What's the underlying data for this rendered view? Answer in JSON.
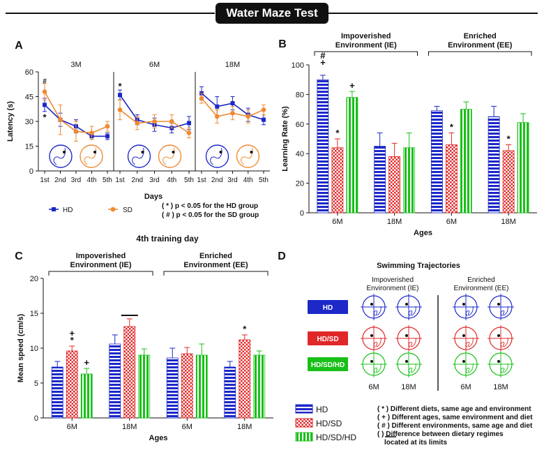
{
  "banner": "Water Maze Test",
  "colors": {
    "hd": "#1c28c8",
    "sd": "#ee8a32",
    "red": "#e02828",
    "green": "#18c018",
    "blue": "#1c28c8"
  },
  "chart_data": [
    {
      "id": "A",
      "type": "line",
      "panel_label": "A",
      "subpanels": [
        "3M",
        "6M",
        "18M"
      ],
      "categories": [
        "1st",
        "2nd",
        "3rd",
        "4th",
        "5th"
      ],
      "ylabel": "Latency (s)",
      "xlabel": "Days",
      "ylim": [
        0,
        60
      ],
      "yticks": [
        0,
        15,
        30,
        45,
        60
      ],
      "series": [
        {
          "name": "HD",
          "values": [
            [
              40,
              31,
              27,
              21,
              21
            ],
            [
              46,
              31,
              28,
              26,
              29
            ],
            [
              47,
              39,
              41,
              34,
              31
            ]
          ]
        },
        {
          "name": "SD",
          "values": [
            [
              48,
              31,
              24,
              23,
              27
            ],
            [
              37,
              29,
              30,
              30,
              23
            ],
            [
              44,
              33,
              35,
              33,
              37
            ]
          ]
        }
      ],
      "errors": [
        [
          [
            4,
            4,
            4,
            2,
            2
          ],
          [
            3,
            3,
            4,
            3,
            4
          ],
          [
            4,
            6,
            4,
            4,
            3
          ]
        ],
        [
          [
            5,
            9,
            6,
            4,
            3
          ],
          [
            6,
            4,
            4,
            4,
            3
          ],
          [
            3,
            4,
            4,
            4,
            3
          ]
        ]
      ],
      "annotations": [
        {
          "text": "#",
          "subpanel": "3M",
          "day": "1st"
        },
        {
          "text": "*",
          "subpanel": "3M",
          "day": "1st"
        },
        {
          "text": "*",
          "subpanel": "6M",
          "day": "1st"
        }
      ],
      "legend": {
        "hd": "HD",
        "sd": "SD",
        "notes": [
          "( * )  p < 0.05 for the HD group",
          "( # )  p < 0.05 for the SD group"
        ]
      }
    },
    {
      "id": "B",
      "type": "bar",
      "panel_label": "B",
      "groups": [
        "Impoverished Environment (IE)",
        "Enriched Environment (EE)"
      ],
      "group_lines": [
        [
          "Impoverished",
          "Environment (IE)"
        ],
        [
          "Enriched",
          "Environment (EE)"
        ]
      ],
      "categories": [
        "6M",
        "18M",
        "6M",
        "18M"
      ],
      "ylabel": "Learning Rate (%)",
      "xlabel": "Ages",
      "ylim": [
        0,
        100
      ],
      "yticks": [
        0,
        20,
        40,
        60,
        80,
        100
      ],
      "series": [
        {
          "name": "HD",
          "values": [
            90,
            45,
            69,
            65
          ]
        },
        {
          "name": "HD/SD",
          "values": [
            44,
            38,
            46,
            42
          ]
        },
        {
          "name": "HD/SD/HD",
          "values": [
            78,
            44,
            70,
            61
          ]
        }
      ],
      "errors": [
        [
          3,
          9,
          3,
          7
        ],
        [
          6,
          9,
          8,
          4
        ],
        [
          4,
          10,
          5,
          6
        ]
      ],
      "annotations": [
        {
          "text": "#",
          "cat": 0,
          "series": 0,
          "stack": 2
        },
        {
          "text": "+",
          "cat": 0,
          "series": 0,
          "stack": 1
        },
        {
          "text": "*",
          "cat": 0,
          "series": 1,
          "stack": 0
        },
        {
          "text": "+",
          "cat": 0,
          "series": 2,
          "stack": 0
        },
        {
          "text": "*",
          "cat": 2,
          "series": 1,
          "stack": 0
        },
        {
          "text": "*",
          "cat": 3,
          "series": 1,
          "stack": 0
        }
      ]
    },
    {
      "id": "C",
      "type": "bar",
      "panel_label": "C",
      "title": "4th training day",
      "groups": [
        "Impoverished Environment (IE)",
        "Enriched Environment (EE)"
      ],
      "group_lines": [
        [
          "Impoverished",
          "Environment (IE)"
        ],
        [
          "Enriched",
          "Environment (EE)"
        ]
      ],
      "categories": [
        "6M",
        "18M",
        "6M",
        "18M"
      ],
      "ylabel": "Mean speed (cm/s)",
      "xlabel": "Ages",
      "ylim": [
        0,
        20
      ],
      "yticks": [
        0,
        5,
        10,
        15,
        20
      ],
      "series": [
        {
          "name": "HD",
          "values": [
            7.3,
            10.6,
            8.6,
            7.3
          ]
        },
        {
          "name": "HD/SD",
          "values": [
            9.6,
            13.1,
            9.2,
            11.2
          ]
        },
        {
          "name": "HD/SD/HD",
          "values": [
            6.3,
            9.0,
            9.0,
            9.0
          ]
        }
      ],
      "errors": [
        [
          0.8,
          1.3,
          1.4,
          0.8
        ],
        [
          0.7,
          1.1,
          0.9,
          0.7
        ],
        [
          0.8,
          0.9,
          1.6,
          0.6
        ]
      ],
      "annotations": [
        {
          "text": "*",
          "cat": 0,
          "series": 1,
          "stack": 0
        },
        {
          "text": "+",
          "cat": 0,
          "series": 1,
          "stack": 1
        },
        {
          "text": "+",
          "cat": 0,
          "series": 2,
          "stack": 0
        },
        {
          "text": "*",
          "cat": 3,
          "series": 1,
          "stack": 0
        }
      ],
      "bracket": {
        "cat": 1
      }
    }
  ],
  "panelD": {
    "label": "D",
    "title": "Swimming Trajectories",
    "col_headers": [
      [
        "Impoverished",
        "Environment (IE)"
      ],
      [
        "Enriched",
        "Environment (EE)"
      ]
    ],
    "rows": [
      "HD",
      "HD/SD",
      "HD/SD/HD"
    ],
    "cols": [
      "6M",
      "18M",
      "6M",
      "18M"
    ]
  },
  "legend_bottom": {
    "items": [
      "HD",
      "HD/SD",
      "HD/SD/HD"
    ],
    "notes": [
      "( * )  Different diets, same age and environment",
      "( + )  Different ages, same environment and diet",
      "( # )  Different environments, same age and diet",
      "(         )  Difference between dietary regimes",
      "located at its limits"
    ]
  }
}
